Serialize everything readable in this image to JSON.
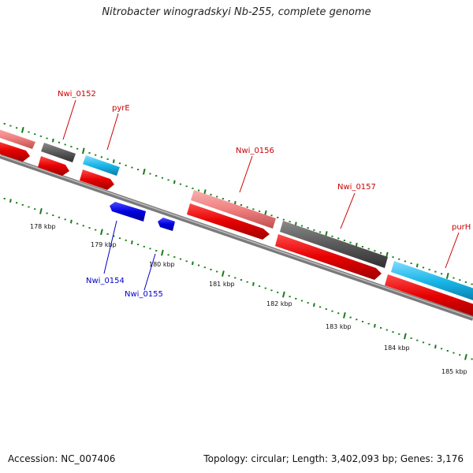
{
  "title": "Nitrobacter winogradskyi Nb-255, complete genome",
  "footer": {
    "accession": "Accession: NC_007406",
    "summary": "Topology: circular; Length: 3,402,093 bp; Genes: 3,176"
  },
  "scale_labels": [
    "178 kbp",
    "179 kbp",
    "180 kbp",
    "181 kbp",
    "182 kbp",
    "183 kbp",
    "184 kbp",
    "185 kbp"
  ],
  "gene_labels": [
    {
      "name": "Nwi_0152",
      "strand": "forward"
    },
    {
      "name": "pyrE",
      "strand": "forward"
    },
    {
      "name": "Nwi_0156",
      "strand": "forward"
    },
    {
      "name": "Nwi_0157",
      "strand": "forward"
    },
    {
      "name": "purH",
      "strand": "forward"
    },
    {
      "name": "Nwi_0154",
      "strand": "reverse"
    },
    {
      "name": "Nwi_0155",
      "strand": "reverse"
    }
  ],
  "colors": {
    "cds_forward": "#e60000",
    "gene_pink": "#f08080",
    "gene_gray": "#5a5a5a",
    "gene_cyan": "#19b6e8",
    "cds_reverse": "#0000e0",
    "backbone": "#808080",
    "ticks": "#1a7a1a",
    "label_forward": "#cc0000",
    "label_reverse": "#0000cc"
  }
}
